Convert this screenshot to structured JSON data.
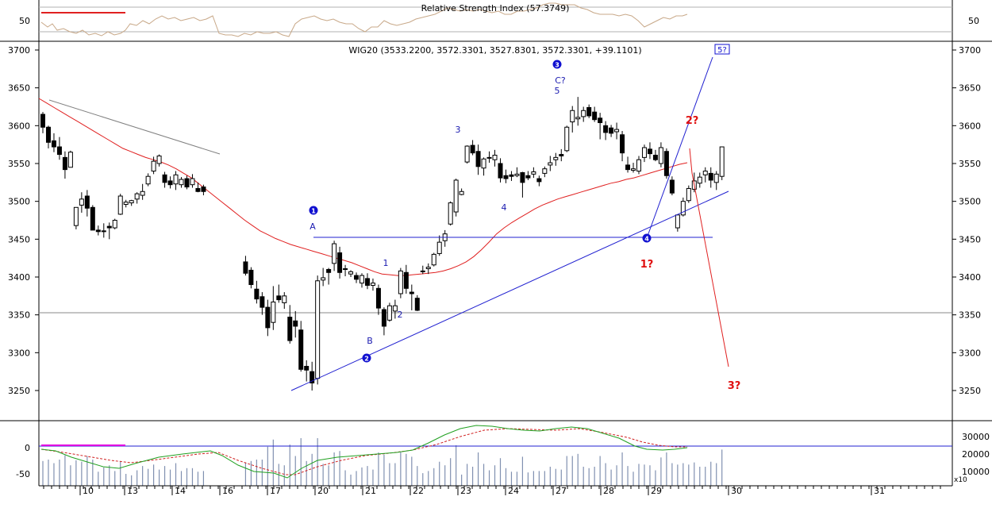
{
  "chart_data": {
    "type": "candlestick",
    "title": "WIG20 (3533.2200, 3572.3301, 3527.8301, 3572.3301, +39.1101)",
    "instrument": "WIG20",
    "ohlc_last": {
      "open": 3533.22,
      "high": 3572.3301,
      "low": 3527.8301,
      "close": 3572.3301,
      "change": "+39.1101"
    },
    "ylim": [
      3200,
      3720
    ],
    "y_ticks": [
      3250,
      3300,
      3350,
      3400,
      3450,
      3500,
      3550,
      3600,
      3650,
      3700
    ],
    "x_day_labels": [
      "10",
      "13",
      "14",
      "16",
      "17",
      "20",
      "21",
      "22",
      "23",
      "24",
      "27",
      "28",
      "29",
      "30",
      "31"
    ],
    "grid": "horizontal-only",
    "candles": [
      [
        3615,
        3618,
        3590,
        3598
      ],
      [
        3598,
        3600,
        3570,
        3578
      ],
      [
        3580,
        3590,
        3565,
        3572
      ],
      [
        3572,
        3585,
        3555,
        3562
      ],
      [
        3558,
        3566,
        3530,
        3542
      ],
      [
        3545,
        3567,
        3545,
        3565
      ],
      [
        3468,
        3492,
        3463,
        3492
      ],
      [
        3495,
        3512,
        3485,
        3503
      ],
      [
        3507,
        3515,
        3480,
        3491
      ],
      [
        3492,
        3495,
        3465,
        3462
      ],
      [
        3462,
        3468,
        3455,
        3460
      ],
      [
        3461,
        3471,
        3452,
        3461
      ],
      [
        3467,
        3472,
        3450,
        3465
      ],
      [
        3465,
        3477,
        3463,
        3475
      ],
      [
        3483,
        3510,
        3482,
        3507
      ],
      [
        3496,
        3502,
        3492,
        3499
      ],
      [
        3498,
        3502,
        3494,
        3501
      ],
      [
        3503,
        3512,
        3497,
        3510
      ],
      [
        3508,
        3523,
        3502,
        3513
      ],
      [
        3523,
        3537,
        3520,
        3533
      ],
      [
        3540,
        3559,
        3536,
        3553
      ],
      [
        3550,
        3562,
        3546,
        3560
      ],
      [
        3535,
        3539,
        3518,
        3525
      ],
      [
        3527,
        3533,
        3517,
        3522
      ],
      [
        3523,
        3540,
        3515,
        3535
      ],
      [
        3522,
        3532,
        3518,
        3529
      ],
      [
        3530,
        3534,
        3516,
        3519
      ],
      [
        3522,
        3536,
        3518,
        3530
      ],
      [
        3517,
        3525,
        3512,
        3513
      ],
      [
        3519,
        3522,
        3508,
        3513
      ],
      [
        3420,
        3428,
        3402,
        3405
      ],
      [
        3409,
        3413,
        3385,
        3390
      ],
      [
        3384,
        3395,
        3365,
        3371
      ],
      [
        3374,
        3380,
        3350,
        3360
      ],
      [
        3360,
        3370,
        3322,
        3333
      ],
      [
        3340,
        3388,
        3330,
        3367
      ],
      [
        3375,
        3390,
        3366,
        3370
      ],
      [
        3366,
        3380,
        3358,
        3375
      ],
      [
        3347,
        3363,
        3312,
        3316
      ],
      [
        3342,
        3355,
        3320,
        3335
      ],
      [
        3330,
        3342,
        3275,
        3278
      ],
      [
        3282,
        3290,
        3262,
        3277
      ],
      [
        3275,
        3288,
        3250,
        3260
      ],
      [
        3266,
        3402,
        3258,
        3395
      ],
      [
        3396,
        3412,
        3388,
        3399
      ],
      [
        3410,
        3412,
        3390,
        3406
      ],
      [
        3418,
        3448,
        3408,
        3444
      ],
      [
        3432,
        3440,
        3398,
        3406
      ],
      [
        3411,
        3416,
        3401,
        3410
      ],
      [
        3404,
        3409,
        3400,
        3407
      ],
      [
        3402,
        3406,
        3392,
        3397
      ],
      [
        3392,
        3405,
        3386,
        3402
      ],
      [
        3398,
        3405,
        3384,
        3389
      ],
      [
        3389,
        3398,
        3382,
        3392
      ],
      [
        3385,
        3390,
        3350,
        3359
      ],
      [
        3357,
        3360,
        3323,
        3335
      ],
      [
        3343,
        3366,
        3341,
        3362
      ],
      [
        3355,
        3370,
        3345,
        3362
      ],
      [
        3378,
        3412,
        3372,
        3408
      ],
      [
        3406,
        3416,
        3378,
        3385
      ],
      [
        3380,
        3390,
        3356,
        3378
      ],
      [
        3372,
        3376,
        3355,
        3356
      ],
      [
        3408,
        3415,
        3404,
        3408
      ],
      [
        3411,
        3418,
        3404,
        3413
      ],
      [
        3416,
        3432,
        3414,
        3430
      ],
      [
        3431,
        3455,
        3428,
        3446
      ],
      [
        3448,
        3462,
        3440,
        3457
      ],
      [
        3470,
        3500,
        3468,
        3498
      ],
      [
        3486,
        3530,
        3480,
        3528
      ],
      [
        3509,
        3517,
        3508,
        3513
      ],
      [
        3552,
        3574,
        3550,
        3573
      ],
      [
        3574,
        3581,
        3561,
        3564
      ],
      [
        3566,
        3575,
        3535,
        3546
      ],
      [
        3544,
        3558,
        3534,
        3556
      ],
      [
        3557,
        3566,
        3551,
        3558
      ],
      [
        3555,
        3568,
        3546,
        3561
      ],
      [
        3550,
        3557,
        3525,
        3531
      ],
      [
        3534,
        3542,
        3524,
        3530
      ],
      [
        3535,
        3540,
        3527,
        3533
      ],
      [
        3534,
        3545,
        3532,
        3536
      ],
      [
        3538,
        3539,
        3505,
        3525
      ],
      [
        3534,
        3540,
        3528,
        3531
      ],
      [
        3536,
        3545,
        3531,
        3539
      ],
      [
        3530,
        3534,
        3520,
        3526
      ],
      [
        3537,
        3546,
        3532,
        3543
      ],
      [
        3548,
        3560,
        3540,
        3551
      ],
      [
        3555,
        3564,
        3547,
        3558
      ],
      [
        3562,
        3569,
        3553,
        3560
      ],
      [
        3567,
        3600,
        3565,
        3598
      ],
      [
        3605,
        3626,
        3591,
        3620
      ],
      [
        3609,
        3638,
        3600,
        3611
      ],
      [
        3612,
        3625,
        3605,
        3620
      ],
      [
        3624,
        3628,
        3610,
        3613
      ],
      [
        3618,
        3625,
        3605,
        3608
      ],
      [
        3610,
        3617,
        3582,
        3604
      ],
      [
        3600,
        3606,
        3581,
        3591
      ],
      [
        3597,
        3601,
        3585,
        3590
      ],
      [
        3592,
        3604,
        3582,
        3595
      ],
      [
        3588,
        3593,
        3553,
        3564
      ],
      [
        3548,
        3559,
        3538,
        3542
      ],
      [
        3541,
        3551,
        3538,
        3543
      ],
      [
        3540,
        3560,
        3536,
        3555
      ],
      [
        3558,
        3575,
        3552,
        3571
      ],
      [
        3569,
        3578,
        3556,
        3563
      ],
      [
        3561,
        3568,
        3553,
        3555
      ],
      [
        3550,
        3578,
        3545,
        3571
      ],
      [
        3566,
        3570,
        3530,
        3534
      ],
      [
        3528,
        3533,
        3508,
        3511
      ],
      [
        3465,
        3483,
        3460,
        3482
      ],
      [
        3482,
        3505,
        3480,
        3500
      ],
      [
        3501,
        3521,
        3498,
        3517
      ],
      [
        3516,
        3538,
        3512,
        3527
      ],
      [
        3524,
        3538,
        3518,
        3532
      ],
      [
        3535,
        3545,
        3525,
        3540
      ],
      [
        3537,
        3545,
        3518,
        3528
      ],
      [
        3525,
        3540,
        3515,
        3536
      ],
      [
        3533,
        3572,
        3528,
        3572
      ]
    ],
    "wave_labels_primary": [
      {
        "label": "1",
        "value": 3500
      },
      {
        "label": "2",
        "value": 3290
      },
      {
        "label": "3",
        "value": 3685
      },
      {
        "label": "4",
        "value": 3452
      },
      {
        "label": "5?",
        "value": 3700
      }
    ],
    "wave_labels_secondary": [
      {
        "label": "A",
        "value": 3472
      },
      {
        "label": "B",
        "value": 3315
      },
      {
        "label": "C?",
        "value": 3658
      },
      {
        "label": "1",
        "value": 3419
      },
      {
        "label": "2",
        "value": 3352
      },
      {
        "label": "3",
        "value": 3587
      },
      {
        "label": "4",
        "value": 3492
      },
      {
        "label": "5",
        "value": 3640
      }
    ],
    "wave_labels_projection": [
      {
        "label": "1?",
        "value": 3418
      },
      {
        "label": "2?",
        "value": 3607
      },
      {
        "label": "3?",
        "value": 3262
      }
    ],
    "horizontal_line_value": 3450,
    "projection_path": [
      3572,
      3280
    ],
    "moving_average": [
      3636,
      3630,
      3624,
      3618,
      3612,
      3606,
      3600,
      3594,
      3588,
      3582,
      3576,
      3570,
      3566,
      3562,
      3558,
      3555,
      3552,
      3548,
      3543,
      3537,
      3531,
      3523,
      3515,
      3507,
      3499,
      3491,
      3483,
      3475,
      3468,
      3461,
      3456,
      3451,
      3447,
      3443,
      3440,
      3437,
      3434,
      3431,
      3428,
      3425,
      3422,
      3419,
      3415,
      3411,
      3407,
      3404,
      3403,
      3402,
      3402,
      3403,
      3404,
      3405,
      3406,
      3408,
      3411,
      3415,
      3420,
      3427,
      3436,
      3446,
      3457,
      3465,
      3472,
      3478,
      3484,
      3490,
      3495,
      3499,
      3503,
      3506,
      3509,
      3512,
      3515,
      3518,
      3521,
      3524,
      3526,
      3529,
      3531,
      3534,
      3537,
      3540,
      3543,
      3546,
      3549,
      3551
    ],
    "oscillator_panel": {
      "y_ticks": [
        0,
        -50
      ],
      "volume_ticks": [
        "30000",
        "20000",
        "10000"
      ],
      "volume_unit_label": "x10"
    },
    "rsi_panel": {
      "title": "Relative Strength Index (57.3749)",
      "value": 57.3749,
      "tick": "50"
    }
  }
}
